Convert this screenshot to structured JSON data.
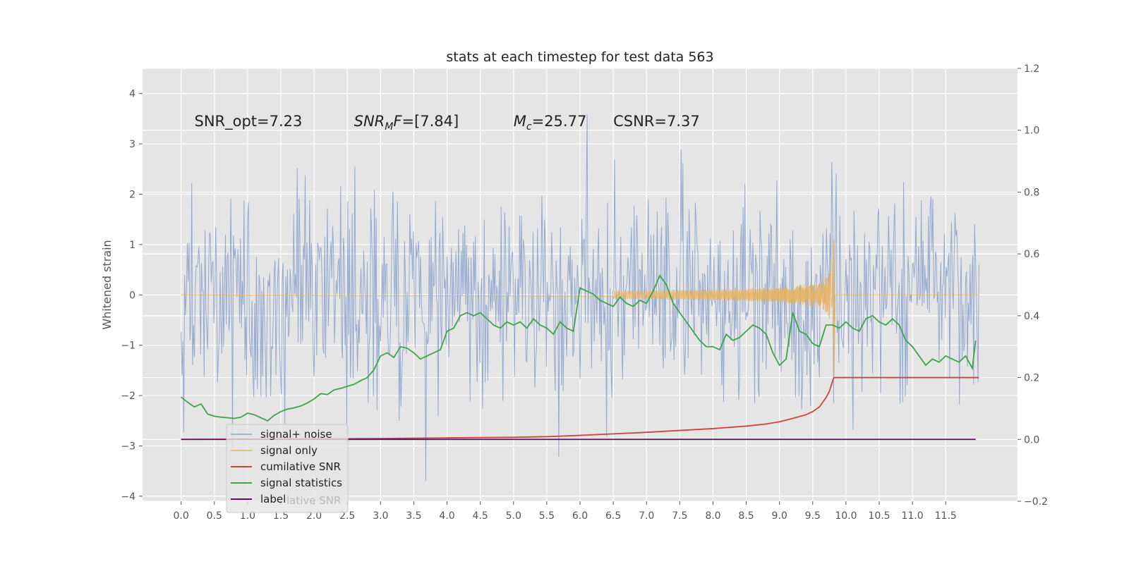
{
  "chart_data": {
    "type": "line",
    "title": "stats at each timestep for test data 563",
    "ylabel": "Whitened strain",
    "y2label": "",
    "xlim": [
      -0.58,
      12.58
    ],
    "ylim": [
      -4.1,
      4.5
    ],
    "y2lim": [
      -0.2,
      1.2
    ],
    "xticks": [
      0.0,
      0.5,
      1.0,
      1.5,
      2.0,
      2.5,
      3.0,
      3.5,
      4.0,
      4.5,
      5.0,
      5.5,
      6.0,
      6.5,
      7.0,
      7.5,
      8.0,
      8.5,
      9.0,
      9.5,
      10.0,
      10.5,
      11.0,
      11.5
    ],
    "xtick_labels": [
      "0.0",
      "0.5",
      "1.0",
      "1.5",
      "2.0",
      "2.5",
      "3.0",
      "3.5",
      "4.0",
      "4.5",
      "5.0",
      "5.5",
      "6.0",
      "6.5",
      "7.0",
      "7.5",
      "8.0",
      "8.5",
      "9.0",
      "9.5",
      "10.0",
      "10.5",
      "11.0",
      "11.5"
    ],
    "yticks": [
      -4,
      -3,
      -2,
      -1,
      0,
      1,
      2,
      3,
      4
    ],
    "ytick_labels": [
      "−4",
      "−3",
      "−2",
      "−1",
      "0",
      "1",
      "2",
      "3",
      "4"
    ],
    "y2ticks": [
      -0.2,
      0.0,
      0.2,
      0.4,
      0.6,
      0.8,
      1.0,
      1.2
    ],
    "y2tick_labels": [
      "−0.2",
      "0.0",
      "0.2",
      "0.4",
      "0.6",
      "0.8",
      "1.0",
      "1.2"
    ],
    "grid": true,
    "legend_position": "lower-left",
    "annotations": [
      {
        "text": "SNR_opt=7.23",
        "x": 0.2,
        "y": 3.35
      },
      {
        "text": "SNR_MF=[7.84]",
        "x": 2.6,
        "y": 3.35
      },
      {
        "text": "M_c=25.77",
        "x": 5.0,
        "y": 3.35
      },
      {
        "text": "CSNR=7.37",
        "x": 6.5,
        "y": 3.35
      }
    ],
    "series": [
      {
        "name": "signal+ noise",
        "axis": "left",
        "color": "#8fa7cf",
        "kind": "noise",
        "x_range": [
          0.0,
          12.0
        ],
        "samples": 900,
        "spread": 1.05,
        "seed": 563,
        "clip": [
          -3.7,
          4.1
        ]
      },
      {
        "name": "signal only",
        "axis": "left",
        "color": "#e8b15a",
        "kind": "chirp",
        "x_range": [
          6.5,
          9.82
        ],
        "merger_time": 9.82,
        "peak_amplitude": 1.7
      },
      {
        "name": "cumilative SNR",
        "axis": "right",
        "color": "#d1423c",
        "x": [
          0,
          1,
          2,
          3,
          4,
          5,
          5.5,
          6,
          6.5,
          7,
          7.5,
          8,
          8.5,
          8.8,
          9.0,
          9.2,
          9.4,
          9.5,
          9.6,
          9.65,
          9.7,
          9.75,
          9.8,
          9.82,
          10,
          11,
          12
        ],
        "y": [
          0.0,
          0.001,
          0.002,
          0.003,
          0.005,
          0.007,
          0.009,
          0.013,
          0.018,
          0.023,
          0.029,
          0.035,
          0.043,
          0.05,
          0.057,
          0.068,
          0.08,
          0.09,
          0.105,
          0.12,
          0.135,
          0.155,
          0.19,
          0.2,
          0.2,
          0.2,
          0.2
        ]
      },
      {
        "name": "signal statistics",
        "axis": "right",
        "color": "#3fa34d",
        "x": [
          0.0,
          0.1,
          0.2,
          0.3,
          0.4,
          0.5,
          0.6,
          0.7,
          0.8,
          0.9,
          1.0,
          1.1,
          1.2,
          1.3,
          1.4,
          1.5,
          1.6,
          1.7,
          1.8,
          1.9,
          2.0,
          2.1,
          2.2,
          2.3,
          2.4,
          2.5,
          2.6,
          2.7,
          2.8,
          2.9,
          3.0,
          3.1,
          3.2,
          3.3,
          3.4,
          3.5,
          3.6,
          3.7,
          3.8,
          3.9,
          4.0,
          4.1,
          4.2,
          4.3,
          4.4,
          4.5,
          4.6,
          4.7,
          4.8,
          4.9,
          5.0,
          5.1,
          5.2,
          5.3,
          5.4,
          5.5,
          5.6,
          5.7,
          5.8,
          5.9,
          6.0,
          6.1,
          6.2,
          6.3,
          6.4,
          6.5,
          6.6,
          6.7,
          6.8,
          6.9,
          7.0,
          7.1,
          7.2,
          7.3,
          7.4,
          7.5,
          7.6,
          7.7,
          7.8,
          7.9,
          8.0,
          8.1,
          8.2,
          8.3,
          8.4,
          8.5,
          8.6,
          8.7,
          8.8,
          8.9,
          9.0,
          9.1,
          9.2,
          9.3,
          9.4,
          9.5,
          9.6,
          9.7,
          9.8,
          9.9,
          10.0,
          10.1,
          10.2,
          10.3,
          10.4,
          10.5,
          10.6,
          10.7,
          10.8,
          10.9,
          11.0,
          11.1,
          11.2,
          11.3,
          11.4,
          11.5,
          11.6,
          11.7,
          11.8,
          11.9,
          11.95
        ],
        "y": [
          0.137,
          0.12,
          0.105,
          0.115,
          0.082,
          0.075,
          0.072,
          0.07,
          0.068,
          0.072,
          0.085,
          0.08,
          0.07,
          0.06,
          0.078,
          0.09,
          0.098,
          0.102,
          0.108,
          0.118,
          0.131,
          0.148,
          0.145,
          0.16,
          0.165,
          0.172,
          0.178,
          0.19,
          0.2,
          0.225,
          0.27,
          0.28,
          0.265,
          0.3,
          0.295,
          0.28,
          0.26,
          0.27,
          0.28,
          0.29,
          0.35,
          0.36,
          0.4,
          0.41,
          0.4,
          0.41,
          0.39,
          0.37,
          0.36,
          0.38,
          0.37,
          0.38,
          0.36,
          0.39,
          0.37,
          0.36,
          0.34,
          0.38,
          0.36,
          0.35,
          0.49,
          0.48,
          0.47,
          0.45,
          0.44,
          0.43,
          0.46,
          0.44,
          0.43,
          0.45,
          0.44,
          0.48,
          0.53,
          0.5,
          0.44,
          0.41,
          0.38,
          0.35,
          0.32,
          0.3,
          0.3,
          0.29,
          0.34,
          0.32,
          0.33,
          0.35,
          0.37,
          0.36,
          0.34,
          0.28,
          0.24,
          0.26,
          0.41,
          0.35,
          0.34,
          0.31,
          0.3,
          0.37,
          0.37,
          0.36,
          0.38,
          0.36,
          0.35,
          0.39,
          0.4,
          0.38,
          0.37,
          0.39,
          0.37,
          0.32,
          0.3,
          0.27,
          0.24,
          0.26,
          0.25,
          0.27,
          0.26,
          0.25,
          0.27,
          0.23,
          0.32
        ]
      },
      {
        "name": "label",
        "axis": "right",
        "color": "#6b0a6b",
        "x": [
          0,
          11.95
        ],
        "y": [
          0.0,
          0.0
        ]
      }
    ],
    "legend_ghost_text": "lative SNR"
  }
}
